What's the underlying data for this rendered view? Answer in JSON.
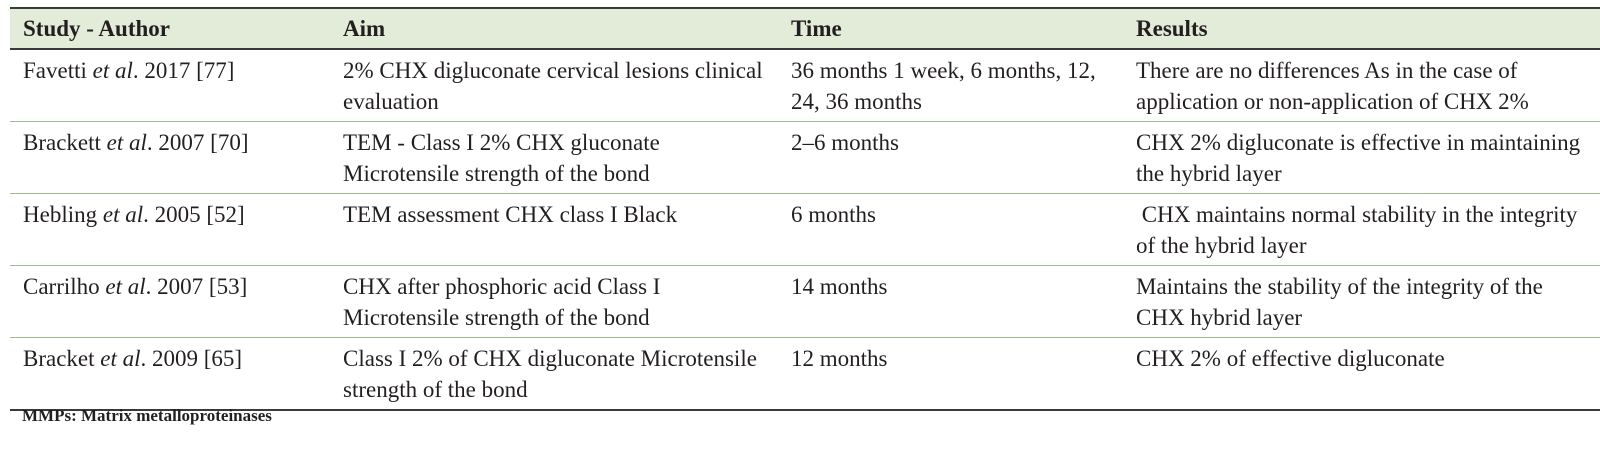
{
  "table": {
    "headers": [
      "Study - Author",
      "Aim",
      "Time",
      "Results"
    ],
    "rows": [
      {
        "author": "Favetti",
        "etal": "et al",
        "cite": ". 2017 [77]",
        "aim": "2% CHX digluconate cervical lesions clinical evaluation",
        "time": "36 months 1 week, 6 months, 12, 24, 36 months",
        "results": "There are no differences As in the case of application or non-application of CHX 2%"
      },
      {
        "author": "Brackett",
        "etal": "et al",
        "cite": ". 2007 [70]",
        "aim": "TEM - Class I 2% CHX gluconate Microtensile strength of the bond",
        "time": "2–6 months",
        "results": "CHX 2% digluconate is effective in maintaining the hybrid layer"
      },
      {
        "author": "Hebling",
        "etal": "et al",
        "cite": ". 2005 [52]",
        "aim": "TEM assessment CHX class I Black",
        "time": "6 months",
        "results": " CHX maintains normal stability in the integrity of the hybrid layer"
      },
      {
        "author": "Carrilho",
        "etal": "et al",
        "cite": ". 2007 [53]",
        "aim": "CHX after phosphoric acid Class I Microtensile strength of the bond",
        "time": "14 months",
        "results": "Maintains the stability of the integrity of the CHX hybrid layer"
      },
      {
        "author": "Bracket",
        "etal": "et al",
        "cite": ". 2009 [65]",
        "aim": "Class I 2% of CHX digluconate Microtensile strength of the bond",
        "time": "12 months",
        "results": "CHX 2% of effective digluconate"
      }
    ]
  },
  "footnote": "MMPs: Matrix metalloproteinases",
  "colors": {
    "header_bg": "#e3ebd9",
    "row_divider": "#9fbd8f",
    "rule": "#3a3a3a"
  }
}
